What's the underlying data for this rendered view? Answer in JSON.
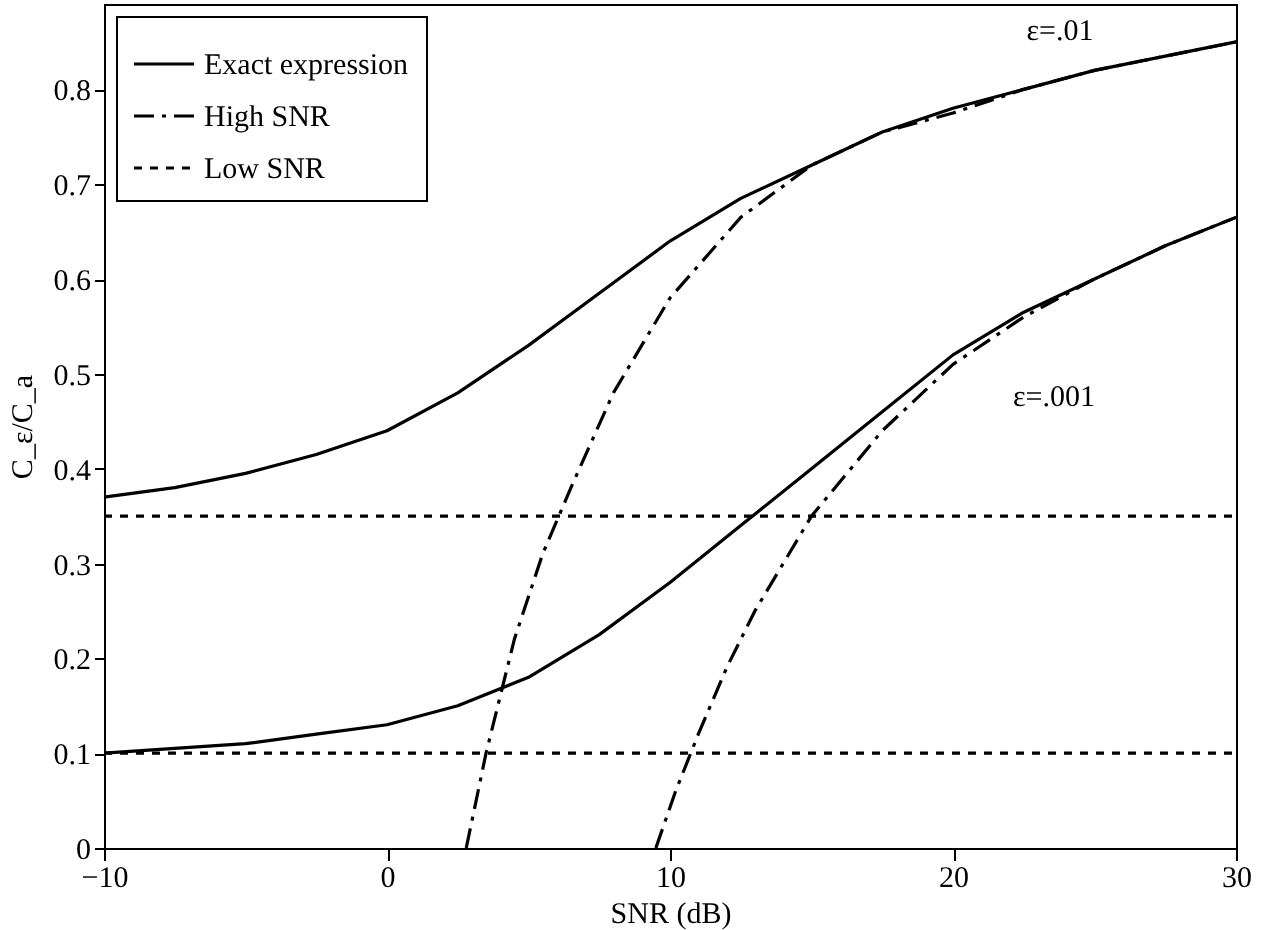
{
  "chart_data": {
    "type": "line",
    "xlabel": "SNR (dB)",
    "ylabel": "C_ε/C_a",
    "xlim": [
      -10,
      30
    ],
    "ylim": [
      0,
      0.89
    ],
    "xticks": [
      -10,
      0,
      10,
      20,
      30
    ],
    "yticks": [
      {
        "value": 0,
        "label": "0"
      },
      0.1,
      0.2,
      0.3,
      0.4,
      0.5,
      0.6,
      0.7,
      0.8
    ],
    "grid": false,
    "legend": "top left",
    "marker": "none",
    "series": [
      {
        "name": "Exact expression",
        "color": "#000000",
        "line_style": "solid",
        "x": [
          -10,
          -7.5,
          -5,
          -2.5,
          0,
          2.5,
          5,
          7.5,
          10,
          12.5,
          15,
          17.5,
          20,
          22.5,
          25,
          27.5,
          30
        ],
        "values": [
          0.37,
          0.38,
          0.395,
          0.415,
          0.44,
          0.48,
          0.53,
          0.585,
          0.64,
          0.685,
          0.72,
          0.755,
          0.78,
          0.8,
          0.82,
          0.835,
          0.85
        ]
      },
      {
        "name": "High SNR",
        "color": "#000000",
        "line_style": "dashed",
        "x": [
          2.8,
          3.5,
          4.5,
          5.5,
          6.5,
          8,
          10,
          12.5,
          15,
          17.5,
          20,
          22.5,
          25,
          27.5,
          30
        ],
        "values": [
          0,
          0.1,
          0.22,
          0.31,
          0.38,
          0.48,
          0.58,
          0.665,
          0.72,
          0.755,
          0.775,
          0.8,
          0.82,
          0.835,
          0.85
        ]
      },
      {
        "name": "Low SNR",
        "color": "#000000",
        "line_style": "dotted",
        "x": [
          -10,
          30
        ],
        "values": [
          0.35,
          0.35
        ]
      },
      {
        "color": "#000000",
        "line_style": "solid",
        "x": [
          -10,
          -7.5,
          -5,
          -2.5,
          0,
          2.5,
          5,
          7.5,
          10,
          12.5,
          15,
          17.5,
          20,
          22.5,
          25,
          27.5,
          30
        ],
        "values": [
          0.1,
          0.105,
          0.11,
          0.12,
          0.13,
          0.15,
          0.18,
          0.225,
          0.28,
          0.34,
          0.4,
          0.46,
          0.52,
          0.565,
          0.6,
          0.635,
          0.665
        ]
      },
      {
        "color": "#000000",
        "line_style": "dashed",
        "x": [
          9.5,
          10.2,
          11,
          12,
          13,
          14,
          15,
          17.5,
          20,
          22.5,
          25,
          27.5,
          30
        ],
        "values": [
          0,
          0.06,
          0.12,
          0.19,
          0.25,
          0.3,
          0.35,
          0.44,
          0.51,
          0.56,
          0.6,
          0.635,
          0.665
        ]
      },
      {
        "color": "#000000",
        "line_style": "dotted",
        "x": [
          -10,
          30
        ],
        "values": [
          0.1,
          0.1
        ]
      }
    ],
    "annotations": [
      "ε=.01",
      "ε=.001"
    ]
  }
}
